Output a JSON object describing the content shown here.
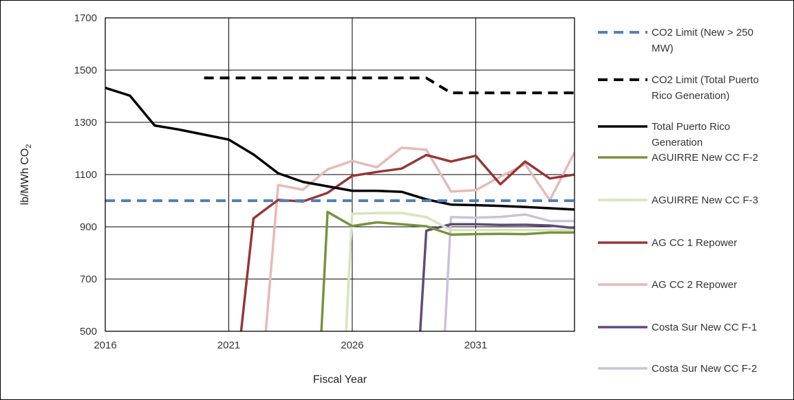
{
  "chart_data": {
    "type": "line",
    "xlabel": "Fiscal Year",
    "ylabel": "lb/MWh CO",
    "ylabel_subscript": "2",
    "xlim": [
      2016,
      2035
    ],
    "ylim": [
      500,
      1700
    ],
    "x_ticks": [
      2016,
      2021,
      2026,
      2031
    ],
    "y_ticks": [
      500,
      700,
      900,
      1100,
      1300,
      1500,
      1700
    ],
    "grid": true,
    "legend_position": "right",
    "series": [
      {
        "name": "CO2 Limit (New > 250 MW)",
        "legend_lines": [
          "CO2 Limit (New > 250",
          "MW)"
        ],
        "color": "#4f81bd",
        "style": "dashed",
        "x": [
          2016,
          2035
        ],
        "y": [
          1000,
          1000
        ]
      },
      {
        "name": "CO2 Limit (Total Puerto Rico Generation)",
        "legend_lines": [
          "CO2 Limit (Total Puerto",
          "Rico Generation)"
        ],
        "color": "#000000",
        "style": "dashed",
        "x": [
          2020,
          2029,
          2030,
          2035
        ],
        "y": [
          1470,
          1470,
          1413,
          1413
        ]
      },
      {
        "name": "Total Puerto Rico Generation",
        "legend_lines": [
          "Total Puerto Rico",
          "Generation"
        ],
        "color": "#000000",
        "style": "solid",
        "x": [
          2016,
          2017,
          2018,
          2019,
          2020,
          2021,
          2022,
          2023,
          2024,
          2025,
          2026,
          2027,
          2028,
          2029,
          2030,
          2031,
          2032,
          2033,
          2034,
          2035
        ],
        "y": [
          1432,
          1402,
          1288,
          1272,
          1253,
          1234,
          1177,
          1105,
          1072,
          1055,
          1038,
          1038,
          1034,
          1005,
          985,
          983,
          980,
          976,
          971,
          966
        ]
      },
      {
        "name": "AGUIRRE New CC F-2",
        "legend_lines": [
          "AGUIRRE New CC F-2"
        ],
        "color": "#77933c",
        "style": "solid",
        "x": [
          2024.75,
          2025,
          2026,
          2027,
          2028,
          2029,
          2030,
          2031,
          2032,
          2033,
          2034,
          2035
        ],
        "y": [
          500,
          957,
          903,
          917,
          910,
          902,
          870,
          872,
          873,
          872,
          878,
          878
        ]
      },
      {
        "name": "AGUIRRE New CC F-3",
        "legend_lines": [
          "AGUIRRE New CC F-3"
        ],
        "color": "#d7e4bd",
        "style": "solid",
        "x": [
          2025.75,
          2026,
          2027,
          2028,
          2029,
          2030,
          2031,
          2032,
          2033,
          2034,
          2035
        ],
        "y": [
          500,
          950,
          953,
          953,
          937,
          888,
          888,
          888,
          888,
          888,
          888
        ]
      },
      {
        "name": "AG CC 1 Repower",
        "legend_lines": [
          "AG CC 1 Repower"
        ],
        "color": "#953735",
        "style": "solid",
        "x": [
          2021.5,
          2022,
          2023,
          2024,
          2025,
          2026,
          2027,
          2028,
          2029,
          2030,
          2031,
          2032,
          2033,
          2034,
          2035
        ],
        "y": [
          500,
          932,
          1003,
          997,
          1030,
          1095,
          1110,
          1123,
          1175,
          1150,
          1172,
          1063,
          1150,
          1085,
          1100
        ]
      },
      {
        "name": "AG CC 2 Repower",
        "legend_lines": [
          "AG CC 2 Repower"
        ],
        "color": "#e6b9b8",
        "style": "solid",
        "x": [
          2022.5,
          2023,
          2024,
          2025,
          2026,
          2027,
          2028,
          2029,
          2030,
          2031,
          2032,
          2033,
          2034,
          2035
        ],
        "y": [
          500,
          1060,
          1042,
          1120,
          1152,
          1128,
          1203,
          1195,
          1035,
          1040,
          1092,
          1140,
          1002,
          1185
        ]
      },
      {
        "name": "Costa Sur New CC F-1",
        "legend_lines": [
          "Costa Sur New CC F-1"
        ],
        "color": "#604a7b",
        "style": "solid",
        "x": [
          2028.75,
          2029,
          2030,
          2031,
          2032,
          2033,
          2034,
          2035
        ],
        "y": [
          500,
          885,
          910,
          910,
          907,
          908,
          905,
          895
        ]
      },
      {
        "name": "Costa Sur New CC F-2",
        "legend_lines": [
          "Costa Sur New CC F-2"
        ],
        "color": "#ccc1da",
        "style": "solid",
        "x": [
          2029.75,
          2030,
          2031,
          2032,
          2033,
          2034,
          2035
        ],
        "y": [
          500,
          937,
          935,
          938,
          947,
          922,
          922
        ]
      }
    ]
  }
}
